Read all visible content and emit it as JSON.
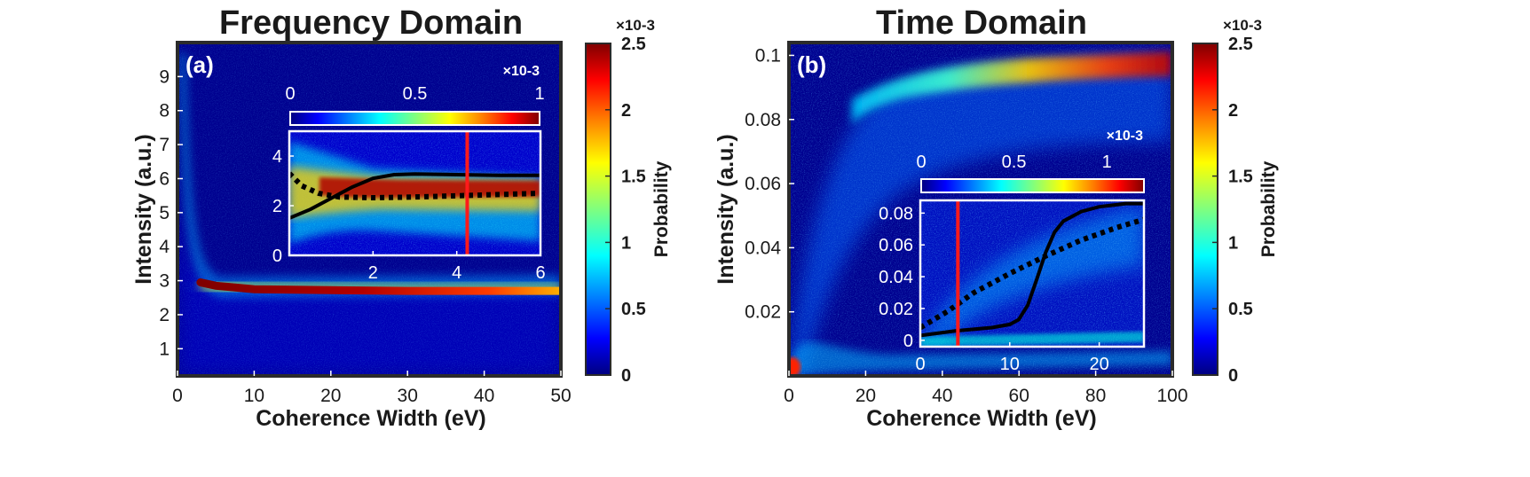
{
  "colors": {
    "background": "#00008f",
    "frame": "#2b2b2b",
    "jet": [
      "#00007f",
      "#0000ff",
      "#007fff",
      "#00ffff",
      "#7fff7f",
      "#ffff00",
      "#ff7f00",
      "#ff0000",
      "#7f0000"
    ],
    "solid_curve": "#000000",
    "dotted_curve": "#000000",
    "marker_line": "#ff1a1a",
    "inset_frame": "#ffffff"
  },
  "chart_data": [
    {
      "id": "a",
      "type": "heatmap",
      "title": "Frequency Domain",
      "panel_label": "(a)",
      "xlabel": "Coherence Width (eV)",
      "ylabel": "Intensity (a.u.)",
      "xlim": [
        0,
        50
      ],
      "ylim": [
        0.2,
        10
      ],
      "x_ticks": [
        0,
        10,
        20,
        30,
        40,
        50
      ],
      "y_ticks": [
        1,
        2,
        3,
        4,
        5,
        6,
        7,
        8,
        9
      ],
      "colorbar": {
        "label": "Probability",
        "exponent": "×10-3",
        "ticks": [
          0,
          0.5,
          1,
          1.5,
          2,
          2.5
        ],
        "range": [
          0,
          2.5
        ]
      },
      "ridge": [
        {
          "x": 3,
          "y": 2.95
        },
        {
          "x": 5,
          "y": 2.85
        },
        {
          "x": 10,
          "y": 2.75
        },
        {
          "x": 20,
          "y": 2.72
        },
        {
          "x": 30,
          "y": 2.7
        },
        {
          "x": 40,
          "y": 2.7
        },
        {
          "x": 50,
          "y": 2.7
        }
      ],
      "inset": {
        "xlim": [
          0,
          6
        ],
        "ylim": [
          0,
          5
        ],
        "x_ticks": [
          2,
          4,
          6
        ],
        "y_ticks": [
          0,
          2,
          4
        ],
        "colorbar": {
          "exponent": "×10-3",
          "ticks": [
            0,
            0.5,
            1
          ],
          "range": [
            0,
            1
          ]
        },
        "solid_curve": [
          {
            "x": 0,
            "y": 1.5
          },
          {
            "x": 0.5,
            "y": 1.85
          },
          {
            "x": 1,
            "y": 2.3
          },
          {
            "x": 1.5,
            "y": 2.75
          },
          {
            "x": 2,
            "y": 3.1
          },
          {
            "x": 2.5,
            "y": 3.25
          },
          {
            "x": 3,
            "y": 3.28
          },
          {
            "x": 4,
            "y": 3.25
          },
          {
            "x": 5,
            "y": 3.22
          },
          {
            "x": 6,
            "y": 3.22
          }
        ],
        "dotted_curve": [
          {
            "x": 0,
            "y": 3.3
          },
          {
            "x": 0.3,
            "y": 2.8
          },
          {
            "x": 0.7,
            "y": 2.5
          },
          {
            "x": 1.2,
            "y": 2.35
          },
          {
            "x": 2,
            "y": 2.32
          },
          {
            "x": 3,
            "y": 2.35
          },
          {
            "x": 4,
            "y": 2.4
          },
          {
            "x": 5,
            "y": 2.45
          },
          {
            "x": 6,
            "y": 2.5
          }
        ],
        "marker_x": 4.25
      }
    },
    {
      "id": "b",
      "type": "heatmap",
      "title": "Time Domain",
      "panel_label": "(b)",
      "xlabel": "Coherence Width (eV)",
      "ylabel": "Intensity (a.u.)",
      "xlim": [
        0,
        100
      ],
      "ylim": [
        0,
        0.104
      ],
      "x_ticks": [
        0,
        20,
        40,
        60,
        80,
        100
      ],
      "y_ticks": [
        0.02,
        0.04,
        0.06,
        0.08,
        0.1
      ],
      "colorbar": {
        "label": "Probability",
        "exponent": "×10-3",
        "ticks": [
          0,
          0.5,
          1,
          1.5,
          2,
          2.5
        ],
        "range": [
          0,
          2.5
        ]
      },
      "ridge": [
        {
          "x": 10,
          "y": 0.06
        },
        {
          "x": 20,
          "y": 0.08
        },
        {
          "x": 30,
          "y": 0.088
        },
        {
          "x": 40,
          "y": 0.092
        },
        {
          "x": 60,
          "y": 0.094
        },
        {
          "x": 80,
          "y": 0.095
        },
        {
          "x": 100,
          "y": 0.096
        }
      ],
      "inset": {
        "xlim": [
          0,
          25
        ],
        "ylim": [
          -0.004,
          0.088
        ],
        "x_ticks": [
          0,
          10,
          20
        ],
        "y_ticks": [
          0,
          0.02,
          0.04,
          0.06,
          0.08
        ],
        "colorbar": {
          "exponent": "×10-3",
          "ticks": [
            0,
            0.5,
            1
          ],
          "range": [
            0,
            1.2
          ]
        },
        "solid_curve": [
          {
            "x": 0,
            "y": 0.003
          },
          {
            "x": 4,
            "y": 0.006
          },
          {
            "x": 8,
            "y": 0.008
          },
          {
            "x": 10,
            "y": 0.01
          },
          {
            "x": 11,
            "y": 0.013
          },
          {
            "x": 12,
            "y": 0.022
          },
          {
            "x": 13,
            "y": 0.038
          },
          {
            "x": 14,
            "y": 0.055
          },
          {
            "x": 15,
            "y": 0.068
          },
          {
            "x": 16,
            "y": 0.075
          },
          {
            "x": 18,
            "y": 0.081
          },
          {
            "x": 20,
            "y": 0.084
          },
          {
            "x": 23,
            "y": 0.086
          },
          {
            "x": 25,
            "y": 0.086
          }
        ],
        "dotted_curve": [
          {
            "x": 0,
            "y": 0.008
          },
          {
            "x": 3,
            "y": 0.018
          },
          {
            "x": 6,
            "y": 0.03
          },
          {
            "x": 10,
            "y": 0.042
          },
          {
            "x": 14,
            "y": 0.053
          },
          {
            "x": 18,
            "y": 0.063
          },
          {
            "x": 22,
            "y": 0.071
          },
          {
            "x": 25,
            "y": 0.076
          }
        ],
        "marker_x": 4.2
      }
    }
  ]
}
